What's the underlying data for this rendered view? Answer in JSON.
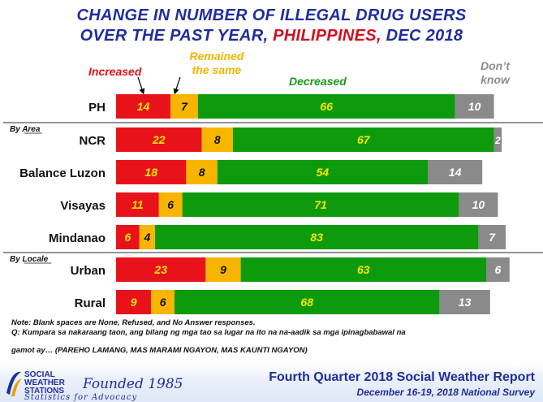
{
  "title": {
    "line1": "CHANGE IN NUMBER OF ILLEGAL DRUG USERS",
    "line2_pre": "OVER THE PAST YEAR, ",
    "line2_highlight": "PHILIPPINES,",
    "line2_post": " DEC 2018"
  },
  "legend": {
    "increased": "Increased",
    "same_line1": "Remained",
    "same_line2": "the same",
    "decreased": "Decreased",
    "dont_know_line1": "Don’t",
    "dont_know_line2": "know"
  },
  "colors": {
    "increased": "#e8131a",
    "same": "#f7b500",
    "decreased": "#0d9a0d",
    "dont_know": "#8a8a8a",
    "title_blue": "#1f2d9b",
    "highlight_red": "#d10f1f"
  },
  "chart_data": {
    "type": "bar",
    "orientation": "horizontal",
    "stacked": true,
    "categories": [
      "PH",
      "NCR",
      "Balance Luzon",
      "Visayas",
      "Mindanao",
      "Urban",
      "Rural"
    ],
    "groups": [
      {
        "label": "By Area",
        "starts_at": "NCR"
      },
      {
        "label": "By Locale",
        "starts_at": "Urban"
      }
    ],
    "series": [
      {
        "name": "Increased",
        "values": [
          14,
          22,
          18,
          11,
          6,
          23,
          9
        ]
      },
      {
        "name": "Remained the same",
        "values": [
          7,
          8,
          8,
          6,
          4,
          9,
          6
        ]
      },
      {
        "name": "Decreased",
        "values": [
          66,
          67,
          54,
          71,
          83,
          63,
          68
        ]
      },
      {
        "name": "Don’t know",
        "values": [
          10,
          2,
          14,
          10,
          7,
          6,
          13
        ]
      }
    ],
    "xlim": [
      0,
      100
    ],
    "grid": false,
    "legend_position": "top"
  },
  "notes": {
    "line1": "Note: Blank spaces are None, Refused, and No Answer responses.",
    "line2": "Q: Kumpara sa nakaraang taon, ang bilang ng mga tao sa lugar na ito na na-aadik sa mga ipinagbabawal na",
    "line3": "gamot ay… (PAREHO LAMANG, MAS MARAMI NGAYON, MAS KAUNTI NGAYON)"
  },
  "footer": {
    "org_line1": "SOCIAL",
    "org_line2": "WEATHER",
    "org_line3": "STATIONS",
    "founded": "Founded 1985",
    "tagline": "Statistics for Advocacy",
    "report_title": "Fourth Quarter 2018 Social Weather Report",
    "report_date": "December 16-19, 2018 National Survey"
  }
}
